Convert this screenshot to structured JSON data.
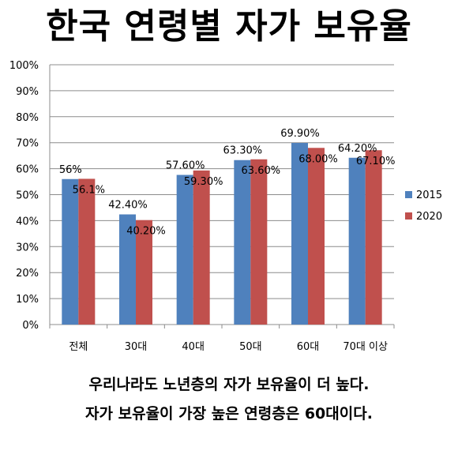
{
  "title": "한국 연령별 자가 보유율",
  "captions": [
    "우리나라도 노년층의 자가 보유율이 더 높다.",
    "자가 보유율이 가장 높은 연령층은 60대이다."
  ],
  "chart_data": {
    "type": "bar",
    "categories": [
      "전체",
      "30대",
      "40대",
      "50대",
      "60대",
      "70대 이상"
    ],
    "series": [
      {
        "name": "2015",
        "color": "#4F81BD",
        "values": [
          56,
          42.4,
          57.6,
          63.3,
          69.9,
          64.2
        ],
        "labels": [
          "56%",
          "42.40%",
          "57.60%",
          "63.30%",
          "69.90%",
          "64.20%"
        ]
      },
      {
        "name": "2020",
        "color": "#C0504D",
        "values": [
          56.1,
          40.2,
          59.3,
          63.6,
          68.0,
          67.1
        ],
        "labels": [
          "56.1%",
          "40.20%",
          "59.30%",
          "63.60%",
          "68.00%",
          "67.10%"
        ]
      }
    ],
    "ylim": [
      0,
      100
    ],
    "yticks": [
      "0%",
      "10%",
      "20%",
      "30%",
      "40%",
      "50%",
      "60%",
      "70%",
      "80%",
      "90%",
      "100%"
    ],
    "grid": true,
    "legend_position": "right"
  }
}
